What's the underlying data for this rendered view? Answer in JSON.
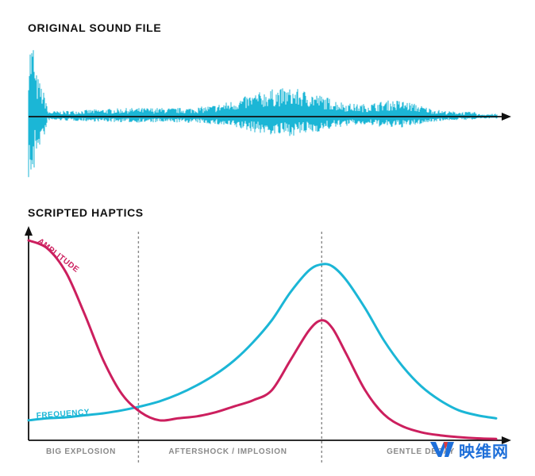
{
  "sound_section": {
    "title": "ORIGINAL SOUND FILE"
  },
  "haptics_section": {
    "title": "SCRIPTED HAPTICS",
    "phase_labels": [
      "BIG EXPLOSION",
      "AFTERSHOCK / IMPLOSION",
      "GENTLE DECAY"
    ]
  },
  "chart_data": {
    "type": "line",
    "title": "SCRIPTED HAPTICS",
    "xlabel": "",
    "ylabel": "",
    "xlim": [
      0,
      100
    ],
    "ylim": [
      0,
      100
    ],
    "phase_boundaries": [
      23.5,
      62.7
    ],
    "series": [
      {
        "name": "AMPLITUDE",
        "color": "#cc1f5e",
        "x": [
          0,
          4,
          8,
          12,
          16,
          20,
          24,
          28,
          32,
          36,
          40,
          44,
          48,
          52,
          56,
          60,
          62.7,
          65,
          68,
          72,
          76,
          80,
          84,
          88,
          92,
          96,
          100
        ],
        "y": [
          100,
          96,
          84,
          63,
          40,
          23,
          14,
          10,
          11,
          12,
          14,
          17,
          20,
          25,
          40,
          55,
          60,
          56,
          43,
          25,
          13,
          7,
          4,
          2.5,
          1.6,
          1,
          0.7
        ]
      },
      {
        "name": "FREQUENCY",
        "color": "#1bb6d6",
        "x": [
          0,
          4,
          8,
          12,
          16,
          20,
          24,
          28,
          32,
          36,
          40,
          44,
          48,
          52,
          56,
          60,
          62.7,
          65,
          68,
          72,
          76,
          80,
          84,
          88,
          92,
          96,
          100
        ],
        "y": [
          10,
          11,
          11.5,
          12.5,
          13.5,
          15,
          17,
          19.5,
          23,
          27.5,
          33,
          40,
          49,
          60,
          74,
          85,
          88,
          87,
          80,
          66,
          50,
          37,
          27,
          20,
          15,
          12.5,
          11
        ]
      }
    ]
  },
  "colors": {
    "waveform": "#1bb6d6",
    "axis": "#111111",
    "divider": "#888888",
    "phase_label": "#8a8a8a"
  },
  "watermark": {
    "text": "映维网"
  }
}
